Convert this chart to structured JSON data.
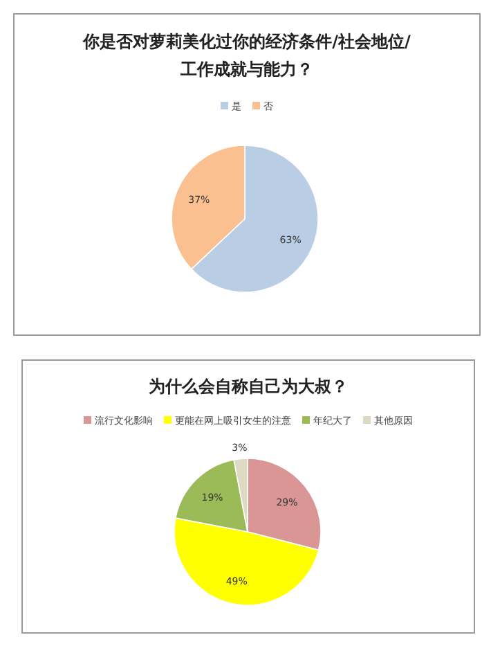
{
  "chart_data": [
    {
      "type": "pie",
      "title": "你是否对萝莉美化过你的经济条件/社会地位/工作成就与能力？",
      "categories": [
        "是",
        "否"
      ],
      "values": [
        63,
        37
      ],
      "colors": [
        "#b9cde5",
        "#fac090"
      ],
      "value_labels": [
        "63%",
        "37%"
      ],
      "legend": "top"
    },
    {
      "type": "pie",
      "title": "为什么会自称自己为大叔？",
      "categories": [
        "流行文化影响",
        "更能在网上吸引女生的注意",
        "年纪大了",
        "其他原因"
      ],
      "values": [
        29,
        49,
        19,
        3
      ],
      "colors": [
        "#d99694",
        "#ffff00",
        "#9bbb59",
        "#ddd9c3"
      ],
      "value_labels": [
        "29%",
        "49%",
        "19%",
        "3%"
      ],
      "legend": "top"
    }
  ]
}
